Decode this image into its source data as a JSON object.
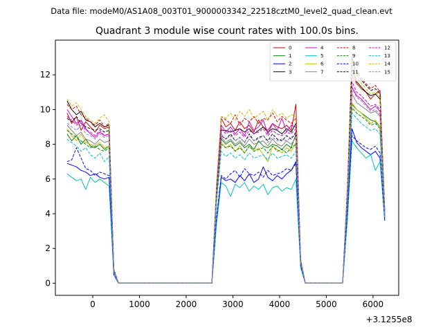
{
  "figure": {
    "suptitle": "Data file: modeM0/AS1A08_003T01_9000003342_22518cztM0_level2_quad_clean.evt"
  },
  "chart_data": {
    "type": "line",
    "title": "Quadrant 3 module wise count rates with 100.0s bins.",
    "xlabel": "",
    "ylabel": "",
    "x_offset_label": "+3.1255e8",
    "xlim": [
      -800,
      6550
    ],
    "ylim": [
      -0.7,
      14.0
    ],
    "x_ticks": [
      0,
      1000,
      2000,
      3000,
      4000,
      5000,
      6000
    ],
    "x_tick_labels": [
      "0",
      "1000",
      "2000",
      "3000",
      "4000",
      "5000",
      "6000"
    ],
    "y_ticks": [
      0,
      2,
      4,
      6,
      8,
      10,
      12
    ],
    "y_tick_labels": [
      "0",
      "2",
      "4",
      "6",
      "8",
      "10",
      "12"
    ],
    "grid": false,
    "legend_position": "top-right",
    "x": [
      -550,
      -450,
      -350,
      -250,
      -150,
      -50,
      50,
      150,
      250,
      350,
      450,
      550,
      650,
      750,
      850,
      950,
      1050,
      1150,
      1250,
      1350,
      1450,
      1550,
      1650,
      1750,
      1850,
      1950,
      2050,
      2150,
      2250,
      2350,
      2450,
      2550,
      2650,
      2750,
      2850,
      2950,
      3050,
      3150,
      3250,
      3350,
      3450,
      3550,
      3650,
      3750,
      3850,
      3950,
      4050,
      4150,
      4250,
      4350,
      4450,
      4550,
      4650,
      4750,
      4850,
      4950,
      5050,
      5150,
      5250,
      5350,
      5450,
      5550,
      5650,
      5750,
      5850,
      5950,
      6050,
      6150,
      6250
    ],
    "series": [
      {
        "name": "0",
        "color": "#d00000",
        "dash": "solid",
        "values": [
          9.8,
          9.2,
          9.6,
          8.8,
          9.3,
          9.0,
          8.7,
          9.1,
          8.9,
          9.0,
          0.8,
          0,
          0,
          0,
          0,
          0,
          0,
          0,
          0,
          0,
          0,
          0,
          0,
          0,
          0,
          0,
          0,
          0,
          0,
          0,
          0,
          0,
          5.5,
          9.5,
          9.0,
          9.2,
          8.8,
          9.3,
          8.9,
          9.1,
          8.7,
          9.4,
          9.0,
          8.8,
          9.2,
          9.0,
          8.9,
          9.1,
          8.8,
          10.3,
          1.4,
          0,
          0,
          0,
          0,
          0,
          0,
          0,
          0,
          0,
          5.3,
          12.0,
          11.5,
          11.2,
          11.0,
          10.6,
          10.9,
          11.1,
          4.0
        ]
      },
      {
        "name": "1",
        "color": "#008000",
        "dash": "solid",
        "values": [
          8.6,
          8.2,
          8.5,
          8.0,
          8.3,
          7.9,
          7.8,
          8.0,
          7.7,
          7.9,
          0.7,
          0,
          0,
          0,
          0,
          0,
          0,
          0,
          0,
          0,
          0,
          0,
          0,
          0,
          0,
          0,
          0,
          0,
          0,
          0,
          0,
          0,
          4.9,
          8.3,
          8.0,
          8.2,
          7.9,
          8.1,
          7.8,
          8.0,
          7.7,
          8.2,
          7.9,
          7.8,
          8.0,
          7.9,
          7.7,
          8.0,
          7.8,
          8.6,
          1.2,
          0,
          0,
          0,
          0,
          0,
          0,
          0,
          0,
          0,
          4.8,
          10.3,
          10.0,
          9.8,
          9.6,
          9.4,
          9.3,
          9.0,
          3.8
        ]
      },
      {
        "name": "2",
        "color": "#0000ff",
        "dash": "solid",
        "values": [
          6.9,
          6.8,
          6.7,
          6.5,
          6.4,
          6.2,
          6.3,
          6.1,
          6.0,
          6.1,
          0.5,
          0,
          0,
          0,
          0,
          0,
          0,
          0,
          0,
          0,
          0,
          0,
          0,
          0,
          0,
          0,
          0,
          0,
          0,
          0,
          0,
          0,
          3.6,
          6.1,
          5.9,
          6.0,
          5.8,
          6.2,
          5.9,
          6.3,
          5.8,
          6.0,
          6.7,
          6.1,
          5.9,
          6.2,
          6.0,
          6.3,
          6.5,
          7.0,
          1.0,
          0,
          0,
          0,
          0,
          0,
          0,
          0,
          0,
          0,
          3.9,
          8.9,
          8.1,
          7.8,
          7.6,
          7.4,
          7.6,
          7.2,
          3.6
        ]
      },
      {
        "name": "3",
        "color": "#000000",
        "dash": "solid",
        "values": [
          10.5,
          10.0,
          9.7,
          9.9,
          9.4,
          9.3,
          9.0,
          9.2,
          9.0,
          9.1,
          0.8,
          0,
          0,
          0,
          0,
          0,
          0,
          0,
          0,
          0,
          0,
          0,
          0,
          0,
          0,
          0,
          0,
          0,
          0,
          0,
          0,
          0,
          5.4,
          8.8,
          8.8,
          8.7,
          8.8,
          8.9,
          8.7,
          8.9,
          8.6,
          8.8,
          9.0,
          8.7,
          8.9,
          8.8,
          8.6,
          8.9,
          8.7,
          9.2,
          1.3,
          0,
          0,
          0,
          0,
          0,
          0,
          0,
          0,
          0,
          5.4,
          12.3,
          11.6,
          11.3,
          11.0,
          10.8,
          10.9,
          10.6,
          4.2
        ]
      },
      {
        "name": "4",
        "color": "#cc00cc",
        "dash": "solid",
        "values": [
          10.0,
          9.6,
          9.2,
          9.4,
          8.9,
          8.6,
          8.4,
          8.7,
          8.5,
          8.6,
          0.8,
          0,
          0,
          0,
          0,
          0,
          0,
          0,
          0,
          0,
          0,
          0,
          0,
          0,
          0,
          0,
          0,
          0,
          0,
          0,
          0,
          0,
          5.2,
          9.1,
          8.7,
          9.0,
          8.6,
          8.9,
          8.5,
          9.3,
          8.8,
          9.0,
          9.4,
          8.6,
          9.2,
          8.8,
          9.5,
          8.7,
          9.1,
          9.0,
          1.3,
          0,
          0,
          0,
          0,
          0,
          0,
          0,
          0,
          0,
          5.1,
          11.3,
          10.8,
          10.6,
          10.3,
          10.0,
          10.2,
          9.9,
          3.9
        ]
      },
      {
        "name": "5",
        "color": "#00bfbf",
        "dash": "solid",
        "values": [
          6.3,
          6.1,
          5.9,
          6.0,
          5.4,
          6.1,
          5.8,
          6.0,
          5.8,
          5.6,
          0.5,
          0,
          0,
          0,
          0,
          0,
          0,
          0,
          0,
          0,
          0,
          0,
          0,
          0,
          0,
          0,
          0,
          0,
          0,
          0,
          0,
          0,
          3.4,
          5.8,
          5.6,
          5.0,
          5.7,
          5.5,
          5.8,
          5.3,
          5.6,
          5.4,
          5.7,
          5.1,
          5.5,
          5.6,
          5.3,
          5.5,
          5.4,
          6.0,
          0.9,
          0,
          0,
          0,
          0,
          0,
          0,
          0,
          0,
          0,
          3.6,
          8.2,
          7.8,
          7.5,
          7.2,
          7.4,
          6.5,
          7.0,
          3.7
        ]
      },
      {
        "name": "6",
        "color": "#bfbf00",
        "dash": "solid",
        "values": [
          8.9,
          8.5,
          8.2,
          8.6,
          8.1,
          8.0,
          7.9,
          8.1,
          7.8,
          7.9,
          0.7,
          0,
          0,
          0,
          0,
          0,
          0,
          0,
          0,
          0,
          0,
          0,
          0,
          0,
          0,
          0,
          0,
          0,
          0,
          0,
          0,
          0,
          4.9,
          8.1,
          7.8,
          8.0,
          7.6,
          7.9,
          7.5,
          7.9,
          7.6,
          7.8,
          7.4,
          7.0,
          7.9,
          7.7,
          7.5,
          7.8,
          7.6,
          8.1,
          1.2,
          0,
          0,
          0,
          0,
          0,
          0,
          0,
          0,
          0,
          4.8,
          10.4,
          10.0,
          9.8,
          9.5,
          9.2,
          9.4,
          9.0,
          3.9
        ]
      },
      {
        "name": "7",
        "color": "#808080",
        "dash": "solid",
        "values": [
          9.1,
          8.8,
          8.5,
          8.7,
          8.3,
          8.2,
          8.0,
          8.3,
          8.1,
          8.2,
          0.7,
          0,
          0,
          0,
          0,
          0,
          0,
          0,
          0,
          0,
          0,
          0,
          0,
          0,
          0,
          0,
          0,
          0,
          0,
          0,
          0,
          0,
          5.0,
          8.4,
          8.1,
          8.3,
          8.0,
          8.2,
          7.9,
          8.3,
          8.0,
          8.1,
          8.2,
          7.9,
          8.3,
          8.0,
          7.9,
          8.2,
          8.0,
          8.4,
          1.2,
          0,
          0,
          0,
          0,
          0,
          0,
          0,
          0,
          0,
          5.0,
          10.9,
          10.4,
          10.2,
          10.0,
          9.8,
          9.9,
          9.6,
          4.0
        ]
      },
      {
        "name": "8",
        "color": "#d00000",
        "dash": "dashed",
        "values": [
          10.3,
          10.0,
          10.2,
          9.7,
          9.5,
          9.3,
          9.1,
          9.4,
          9.0,
          9.2,
          0.8,
          0,
          0,
          0,
          0,
          0,
          0,
          0,
          0,
          0,
          0,
          0,
          0,
          0,
          0,
          0,
          0,
          0,
          0,
          0,
          0,
          0,
          5.6,
          9.6,
          9.4,
          9.2,
          9.7,
          9.1,
          9.5,
          9.3,
          9.6,
          9.2,
          9.5,
          9.4,
          9.8,
          9.3,
          9.6,
          9.4,
          9.2,
          9.5,
          1.4,
          0,
          0,
          0,
          0,
          0,
          0,
          0,
          0,
          0,
          5.6,
          12.6,
          12.2,
          11.8,
          11.5,
          11.2,
          11.4,
          11.0,
          4.3
        ]
      },
      {
        "name": "9",
        "color": "#008000",
        "dash": "dashed",
        "values": [
          8.8,
          8.6,
          8.4,
          8.2,
          8.0,
          7.8,
          7.9,
          7.7,
          7.6,
          7.8,
          0.7,
          0,
          0,
          0,
          0,
          0,
          0,
          0,
          0,
          0,
          0,
          0,
          0,
          0,
          0,
          0,
          0,
          0,
          0,
          0,
          0,
          0,
          4.8,
          8.0,
          7.8,
          7.9,
          7.6,
          7.8,
          7.5,
          7.9,
          7.6,
          7.7,
          7.8,
          7.5,
          7.9,
          7.6,
          7.7,
          7.5,
          7.8,
          8.0,
          1.2,
          0,
          0,
          0,
          0,
          0,
          0,
          0,
          0,
          0,
          4.7,
          10.1,
          9.8,
          9.6,
          9.4,
          9.1,
          9.2,
          8.9,
          3.8
        ]
      },
      {
        "name": "10",
        "color": "#0000ff",
        "dash": "dashed",
        "values": [
          7.0,
          7.1,
          7.8,
          7.2,
          6.6,
          6.5,
          6.2,
          6.4,
          6.3,
          6.2,
          0.5,
          0,
          0,
          0,
          0,
          0,
          0,
          0,
          0,
          0,
          0,
          0,
          0,
          0,
          0,
          0,
          0,
          0,
          0,
          0,
          0,
          0,
          3.8,
          6.2,
          6.0,
          6.3,
          6.5,
          6.1,
          6.6,
          6.3,
          6.2,
          6.4,
          6.1,
          6.5,
          6.2,
          6.3,
          6.4,
          6.6,
          6.5,
          6.9,
          1.0,
          0,
          0,
          0,
          0,
          0,
          0,
          0,
          0,
          0,
          4.0,
          8.5,
          8.2,
          8.0,
          7.8,
          7.7,
          7.9,
          7.5,
          3.7
        ]
      },
      {
        "name": "11",
        "color": "#000000",
        "dash": "dashed",
        "values": [
          9.5,
          9.3,
          9.6,
          9.2,
          9.0,
          8.9,
          8.8,
          8.9,
          8.7,
          8.8,
          0.8,
          0,
          0,
          0,
          0,
          0,
          0,
          0,
          0,
          0,
          0,
          0,
          0,
          0,
          0,
          0,
          0,
          0,
          0,
          0,
          0,
          0,
          5.3,
          8.5,
          8.3,
          8.6,
          8.2,
          8.4,
          8.1,
          8.6,
          8.2,
          8.4,
          8.5,
          8.2,
          8.6,
          8.3,
          8.2,
          8.5,
          8.3,
          8.7,
          1.3,
          0,
          0,
          0,
          0,
          0,
          0,
          0,
          0,
          0,
          5.3,
          13.0,
          12.0,
          11.7,
          11.4,
          11.1,
          11.2,
          10.9,
          4.2
        ]
      },
      {
        "name": "12",
        "color": "#cc00cc",
        "dash": "dashed",
        "values": [
          9.6,
          9.4,
          9.1,
          9.3,
          8.8,
          8.7,
          8.5,
          8.8,
          8.5,
          8.6,
          0.8,
          0,
          0,
          0,
          0,
          0,
          0,
          0,
          0,
          0,
          0,
          0,
          0,
          0,
          0,
          0,
          0,
          0,
          0,
          0,
          0,
          0,
          5.1,
          8.9,
          8.6,
          8.8,
          8.5,
          8.7,
          8.4,
          8.8,
          8.6,
          8.7,
          8.9,
          8.5,
          8.8,
          8.6,
          8.5,
          8.7,
          8.6,
          8.9,
          1.3,
          0,
          0,
          0,
          0,
          0,
          0,
          0,
          0,
          0,
          5.1,
          11.6,
          11.0,
          10.8,
          10.5,
          10.2,
          10.3,
          10.0,
          4.0
        ]
      },
      {
        "name": "13",
        "color": "#00bfbf",
        "dash": "dashed",
        "values": [
          8.3,
          8.1,
          7.9,
          7.6,
          7.8,
          7.4,
          7.2,
          7.5,
          7.0,
          7.3,
          0.6,
          0,
          0,
          0,
          0,
          0,
          0,
          0,
          0,
          0,
          0,
          0,
          0,
          0,
          0,
          0,
          0,
          0,
          0,
          0,
          0,
          0,
          4.6,
          7.6,
          7.3,
          7.5,
          7.2,
          7.4,
          7.1,
          7.5,
          7.2,
          7.3,
          7.4,
          7.1,
          7.5,
          7.2,
          7.3,
          7.4,
          7.2,
          7.6,
          1.1,
          0,
          0,
          0,
          0,
          0,
          0,
          0,
          0,
          0,
          4.5,
          9.8,
          9.5,
          9.2,
          9.0,
          8.8,
          8.9,
          8.6,
          3.8
        ]
      },
      {
        "name": "14",
        "color": "#bfbf00",
        "dash": "dashed",
        "values": [
          10.6,
          10.2,
          10.4,
          10.0,
          9.6,
          9.4,
          9.2,
          9.5,
          9.7,
          9.3,
          0.8,
          0,
          0,
          0,
          0,
          0,
          0,
          0,
          0,
          0,
          0,
          0,
          0,
          0,
          0,
          0,
          0,
          0,
          0,
          0,
          0,
          0,
          5.7,
          9.6,
          9.5,
          9.8,
          9.4,
          9.9,
          9.6,
          10.0,
          9.5,
          9.7,
          9.9,
          9.4,
          10.0,
          9.6,
          9.8,
          9.5,
          9.7,
          9.6,
          1.4,
          0,
          0,
          0,
          0,
          0,
          0,
          0,
          0,
          0,
          5.6,
          12.2,
          11.8,
          11.5,
          11.2,
          10.9,
          11.0,
          10.7,
          4.2
        ]
      },
      {
        "name": "15",
        "color": "#9370db",
        "dash": "dashed",
        "values": [
          9.2,
          9.0,
          8.8,
          9.1,
          8.6,
          8.5,
          8.3,
          8.6,
          8.4,
          8.5,
          0.7,
          0,
          0,
          0,
          0,
          0,
          0,
          0,
          0,
          0,
          0,
          0,
          0,
          0,
          0,
          0,
          0,
          0,
          0,
          0,
          0,
          0,
          5.0,
          8.6,
          8.3,
          8.5,
          8.2,
          8.4,
          8.1,
          8.5,
          8.2,
          8.3,
          8.5,
          8.1,
          8.4,
          8.2,
          8.3,
          8.2,
          8.4,
          8.6,
          1.2,
          0,
          0,
          0,
          0,
          0,
          0,
          0,
          0,
          0,
          5.0,
          11.2,
          10.7,
          10.5,
          10.2,
          9.9,
          10.0,
          9.7,
          3.9
        ]
      }
    ]
  }
}
